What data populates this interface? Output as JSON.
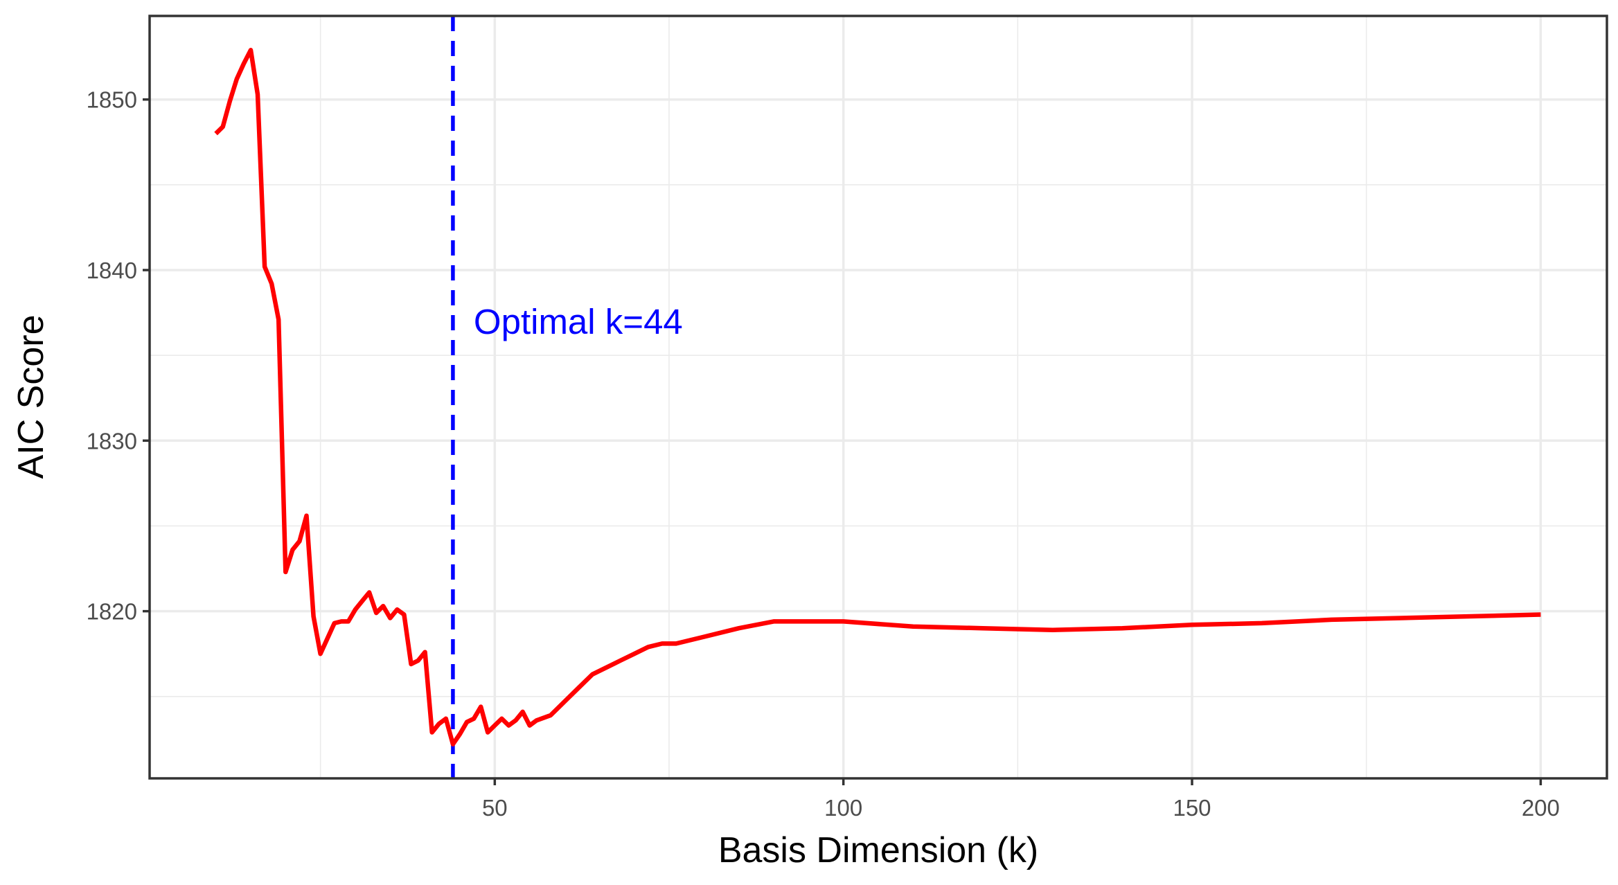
{
  "chart_data": {
    "type": "line",
    "title": "",
    "xlabel": "Basis Dimension (k)",
    "ylabel": "AIC Score",
    "xlim": [
      0.5,
      209.5
    ],
    "ylim": [
      1810.2,
      1854.9
    ],
    "x_ticks": [
      50,
      100,
      150,
      200
    ],
    "x_tick_labels": [
      "50",
      "100",
      "150",
      "200"
    ],
    "x_minor_ticks": [
      25,
      75,
      125,
      175
    ],
    "y_ticks": [
      1820,
      1830,
      1840,
      1850
    ],
    "y_tick_labels": [
      "1820",
      "1830",
      "1840",
      "1850"
    ],
    "y_minor_ticks": [
      1815,
      1825,
      1835,
      1845
    ],
    "grid": true,
    "series": [
      {
        "color": "#ff0000",
        "x": [
          10,
          11,
          12,
          13,
          14,
          15,
          16,
          17,
          18,
          19,
          20,
          21,
          22,
          23,
          24,
          25,
          26,
          27,
          28,
          29,
          30,
          31,
          32,
          33,
          34,
          35,
          36,
          37,
          38,
          39,
          40,
          41,
          42,
          43,
          44,
          45,
          46,
          47,
          48,
          49,
          50,
          51,
          52,
          53,
          54,
          55,
          56,
          58,
          60,
          62,
          64,
          66,
          68,
          70,
          72,
          74,
          76,
          78,
          80,
          85,
          90,
          100,
          110,
          120,
          130,
          140,
          150,
          160,
          170,
          180,
          190,
          200
        ],
        "y": [
          1848.0,
          1848.4,
          1849.9,
          1851.2,
          1852.1,
          1852.9,
          1850.3,
          1840.2,
          1839.2,
          1837.1,
          1822.3,
          1823.6,
          1824.1,
          1825.6,
          1819.7,
          1817.5,
          1818.4,
          1819.3,
          1819.4,
          1819.4,
          1820.1,
          1820.6,
          1821.1,
          1819.9,
          1820.3,
          1819.6,
          1820.1,
          1819.8,
          1816.9,
          1817.1,
          1817.6,
          1812.9,
          1813.4,
          1813.7,
          1812.2,
          1812.8,
          1813.5,
          1813.7,
          1814.4,
          1812.9,
          1813.3,
          1813.7,
          1813.3,
          1813.6,
          1814.1,
          1813.3,
          1813.6,
          1813.9,
          1814.7,
          1815.5,
          1816.3,
          1816.7,
          1817.1,
          1817.5,
          1817.9,
          1818.1,
          1818.1,
          1818.3,
          1818.5,
          1819.0,
          1819.4,
          1819.4,
          1819.1,
          1819.0,
          1818.9,
          1819.0,
          1819.2,
          1819.3,
          1819.5,
          1819.6,
          1819.7,
          1819.8
        ]
      }
    ],
    "vline": {
      "x": 44,
      "color": "#0000ff",
      "style": "dashed",
      "label": "Optimal k=44",
      "label_y": 1837
    }
  }
}
